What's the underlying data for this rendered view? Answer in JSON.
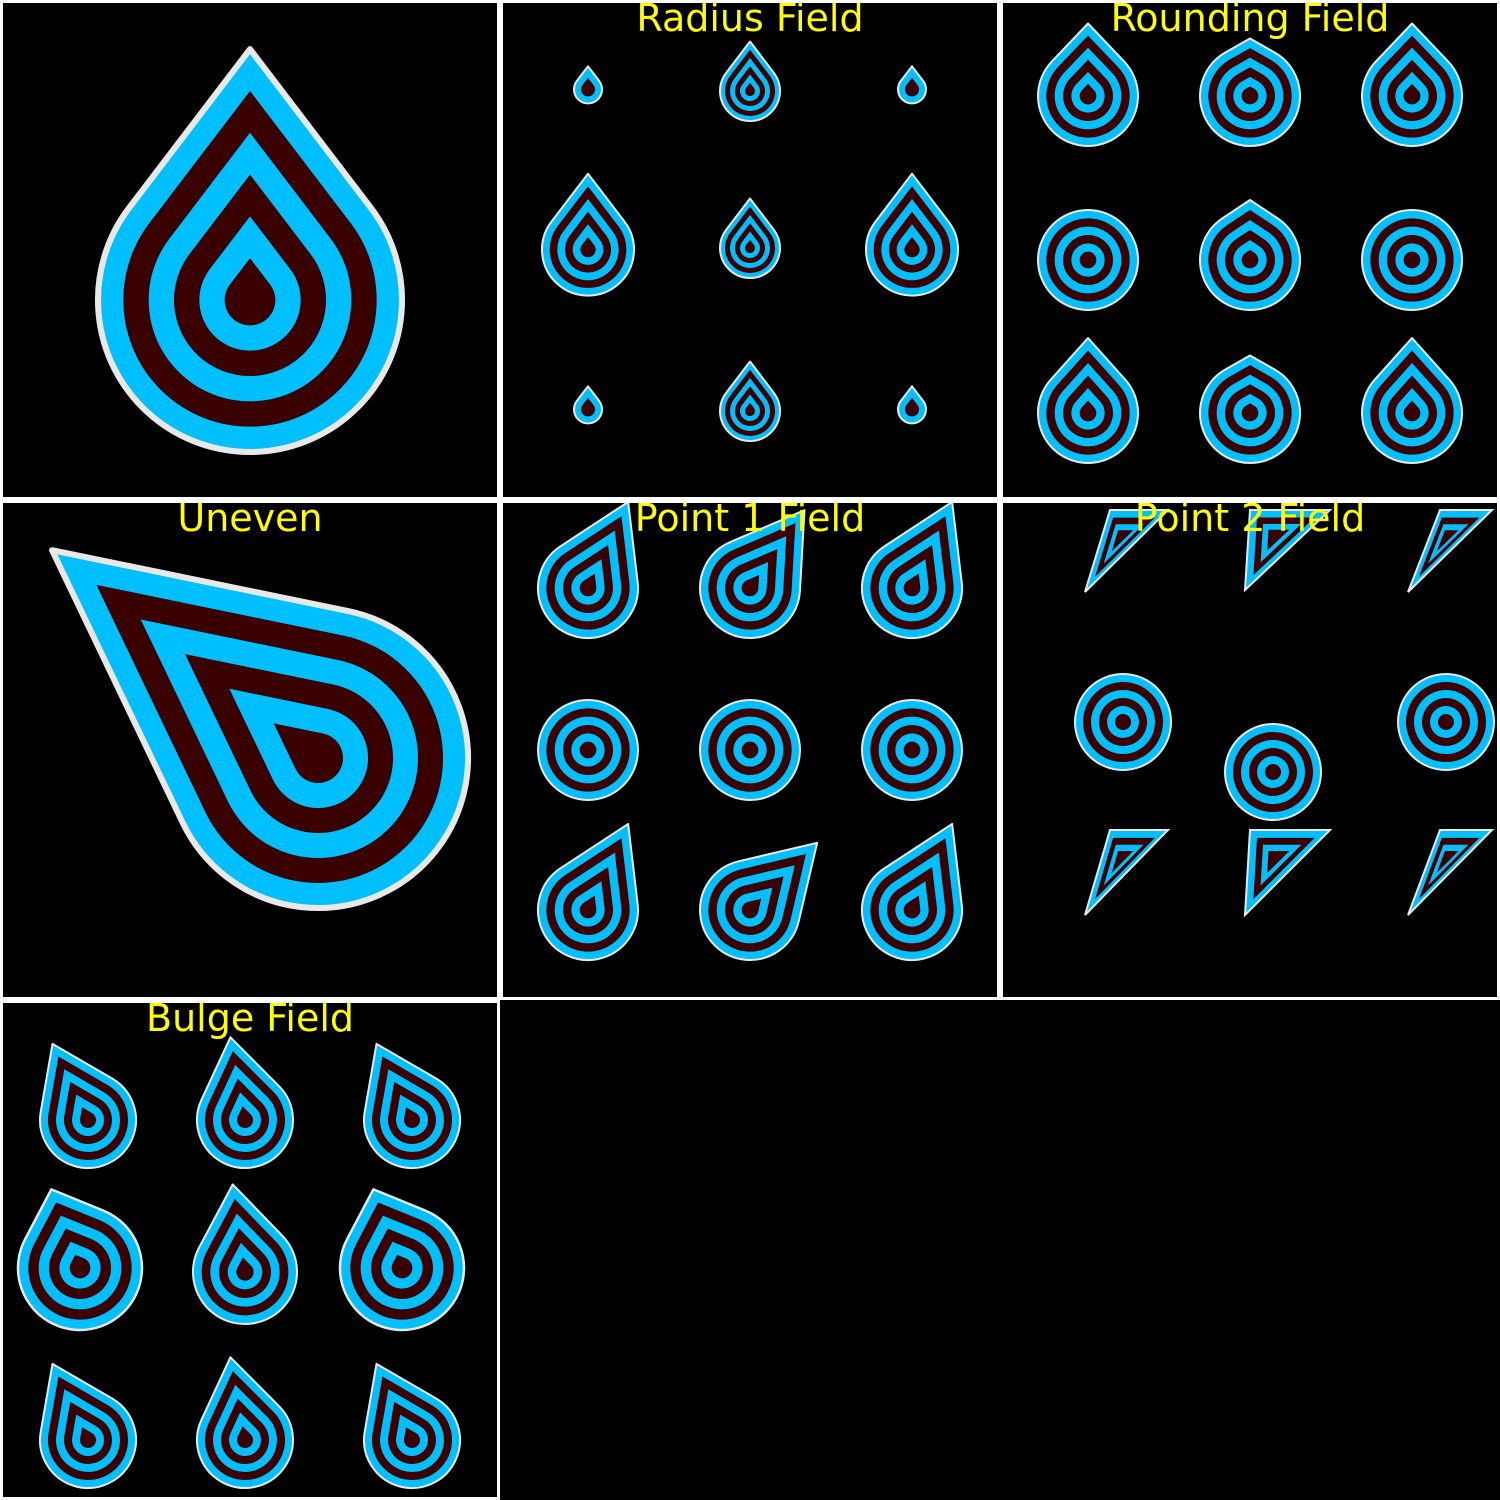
{
  "panels": [
    {
      "title": "",
      "shape": "teardrop-large"
    },
    {
      "title": "Radius Field",
      "shape": "teardrop-grid-radius"
    },
    {
      "title": "Rounding Field",
      "shape": "teardrop-grid-rounding"
    },
    {
      "title": "Uneven",
      "shape": "teardrop-uneven"
    },
    {
      "title": "Point 1 Field",
      "shape": "teardrop-grid-point1"
    },
    {
      "title": "Point 2 Field",
      "shape": "teardrop-grid-point2"
    },
    {
      "title": "Bulge Field",
      "shape": "teardrop-grid-bulge"
    }
  ],
  "colors": {
    "background": "#000000",
    "frame": "#ffffff",
    "title": "#ffff00",
    "band_light": "#00bfff",
    "band_dark": "#3a0000",
    "edge": "#e8e8e8"
  }
}
